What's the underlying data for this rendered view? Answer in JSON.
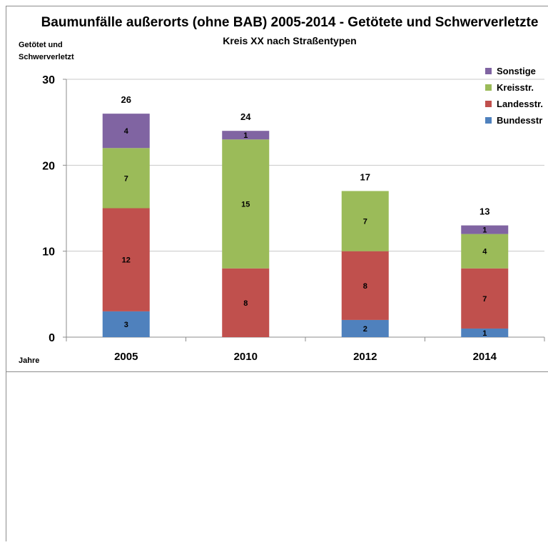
{
  "chart_data": {
    "type": "bar",
    "stacked": true,
    "title": "Baumunfälle außerorts (ohne BAB) 2005-2014 - Getötete und Schwerverletzte",
    "subtitle": "Kreis XX nach Straßentypen",
    "ylabel_line1": "Getötet und",
    "ylabel_line2": "Schwerverletzt",
    "xlabel": "Jahre",
    "ylim": [
      0,
      30
    ],
    "yticks": [
      0,
      10,
      20,
      30
    ],
    "grid": true,
    "legend_position": "top-right",
    "categories": [
      "2005",
      "2010",
      "2012",
      "2014"
    ],
    "series": [
      {
        "name": "Bundesstr",
        "color": "#4f81bd",
        "values": [
          3,
          0,
          2,
          1
        ]
      },
      {
        "name": "Landesstr.",
        "color": "#c0504d",
        "values": [
          12,
          8,
          8,
          7
        ]
      },
      {
        "name": "Kreisstr.",
        "color": "#9bbb59",
        "values": [
          7,
          15,
          7,
          4
        ]
      },
      {
        "name": "Sonstige",
        "color": "#8064a2",
        "values": [
          4,
          1,
          0,
          1
        ]
      }
    ],
    "totals": [
      26,
      24,
      17,
      13
    ]
  }
}
